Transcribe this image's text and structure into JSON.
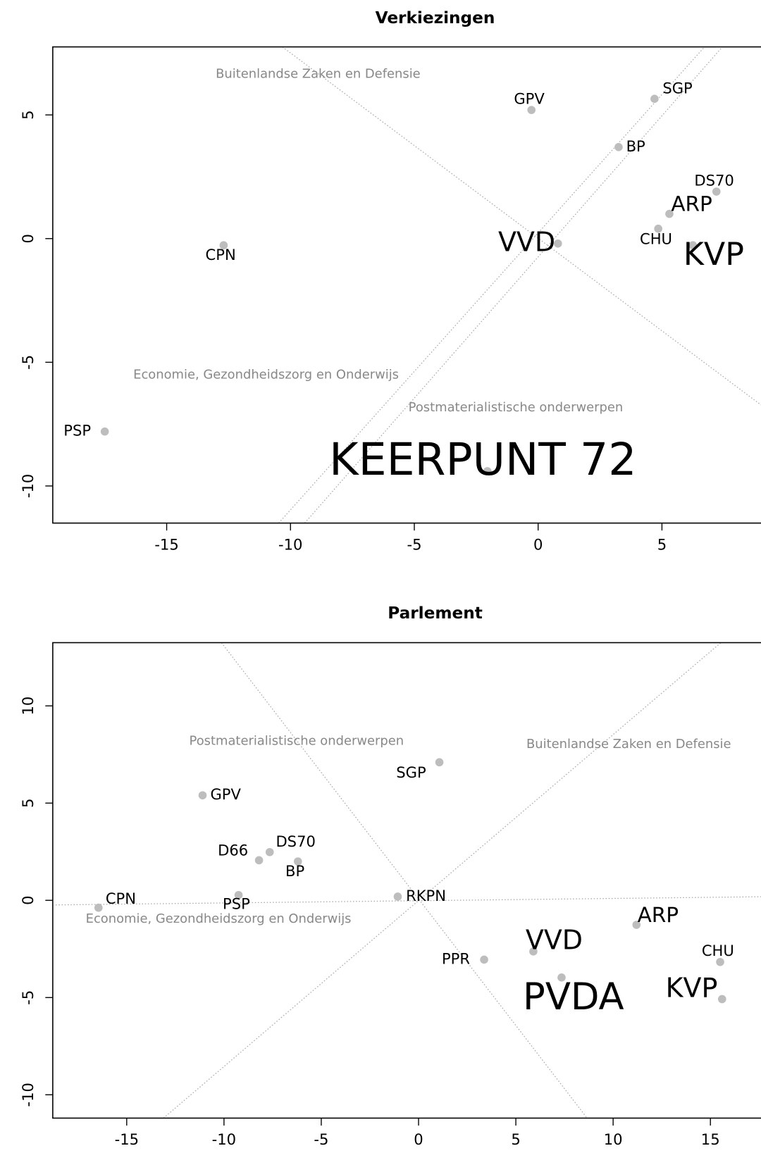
{
  "chart_data": [
    {
      "type": "scatter",
      "title": "Verkiezingen",
      "color": "#bdbdbd",
      "labels": [
        "GPV",
        "SGP",
        "BP",
        "DS70",
        "ARP",
        "CHU",
        "KVP",
        "VVD",
        "CPN",
        "PSP",
        "KEERPUNT 72"
      ],
      "x": [
        -0.27,
        4.7,
        3.25,
        7.2,
        5.3,
        4.85,
        6.25,
        0.8,
        -12.7,
        -17.5,
        -2.05
      ],
      "y": [
        5.2,
        5.65,
        3.7,
        1.9,
        1.0,
        0.4,
        -0.27,
        -0.2,
        -0.27,
        -7.8,
        -9.4
      ],
      "sizes": [
        1,
        1,
        1,
        1,
        1.4,
        1,
        2.1,
        1.8,
        1,
        1,
        3.0
      ],
      "annotations": [
        "Buitenlandse Zaken en Defensie",
        "Economie, Gezondheidszorg en Onderwijs",
        "Postmaterialistische onderwerpen"
      ],
      "xlim": [
        -19.6,
        9.0
      ],
      "ylim": [
        -11.5,
        7.75
      ],
      "xticks": [
        -15,
        -10,
        -5,
        0,
        5
      ],
      "yticks": [
        -10,
        -5,
        0,
        5
      ]
    },
    {
      "type": "scatter",
      "title": "Parlement",
      "color": "#bdbdbd",
      "labels": [
        "CPN",
        "GPV",
        "SGP",
        "D66",
        "DS70",
        "BP",
        "PSP",
        "RKPN",
        "ARP",
        "VVD",
        "PPR",
        "PVDA",
        "CHU",
        "KVP"
      ],
      "x": [
        -16.45,
        -11.1,
        1.07,
        -8.2,
        -7.65,
        -6.2,
        -9.25,
        -1.07,
        11.2,
        5.9,
        3.37,
        7.35,
        15.5,
        15.6
      ],
      "y": [
        -0.38,
        5.4,
        7.1,
        2.06,
        2.48,
        2.0,
        0.27,
        0.19,
        -1.26,
        -2.63,
        -3.05,
        -3.97,
        -3.17,
        -5.08
      ],
      "sizes": [
        1,
        1,
        1,
        1,
        1,
        1,
        1,
        1,
        1.4,
        1.8,
        1,
        2.5,
        1,
        1.8
      ],
      "annotations": [
        "Postmaterialistische onderwerpen",
        "Buitenlandse Zaken en Defensie",
        "Economie, Gezondheidszorg en Onderwijs"
      ],
      "xlim": [
        -18.8,
        17.6
      ],
      "ylim": [
        -11.2,
        13.25
      ],
      "xticks": [
        -15,
        -10,
        -5,
        0,
        5,
        10,
        15
      ],
      "yticks": [
        -10,
        -5,
        0,
        5,
        10
      ]
    }
  ]
}
